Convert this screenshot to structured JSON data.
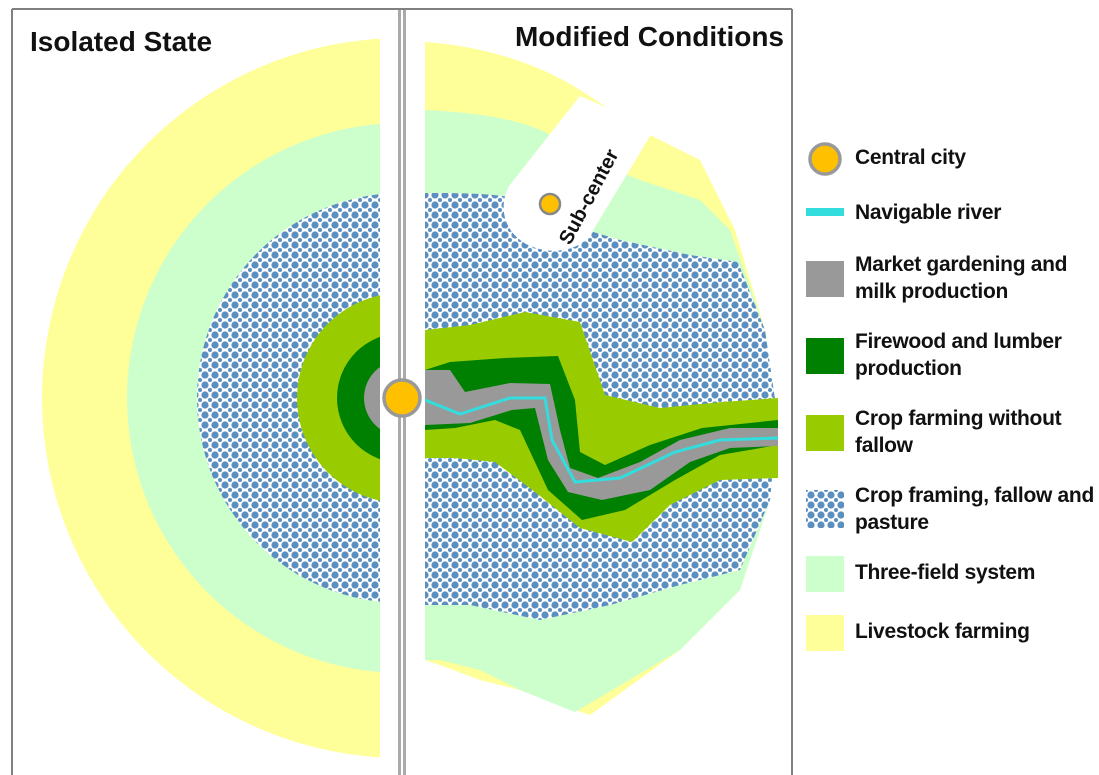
{
  "panels": {
    "left_title": "Isolated State",
    "right_title": "Modified Conditions"
  },
  "subcenter": {
    "label": "Sub-center"
  },
  "legend": {
    "items": [
      {
        "label": "Central city",
        "color": "#FFC000",
        "icon": "central-city-icon"
      },
      {
        "label": "Navigable river",
        "color": "#33DDDD",
        "icon": "river-icon"
      },
      {
        "label": "Market gardening and milk production",
        "color": "#999999",
        "icon": "market-gardening-swatch"
      },
      {
        "label": "Firewood and lumber production",
        "color": "#008000",
        "icon": "firewood-swatch"
      },
      {
        "label": "Crop farming without fallow",
        "color": "#99CC00",
        "icon": "crop-farming-swatch"
      },
      {
        "label": "Crop framing, fallow and pasture",
        "color": "#5B8FC0",
        "icon": "fallow-pasture-swatch"
      },
      {
        "label": "Three-field system",
        "color": "#CCFFCC",
        "icon": "three-field-swatch"
      },
      {
        "label": "Livestock farming",
        "color": "#FFFF99",
        "icon": "livestock-swatch"
      }
    ]
  },
  "colors": {
    "livestock": "#FFFF99",
    "three_field": "#CCFFCC",
    "fallow_dot": "#5B8FC0",
    "crop": "#99CC00",
    "firewood": "#008000",
    "market": "#999999",
    "river": "#33DDDD",
    "city": "#FFC000",
    "road": "#AAAAAA",
    "frame": "#808080"
  }
}
